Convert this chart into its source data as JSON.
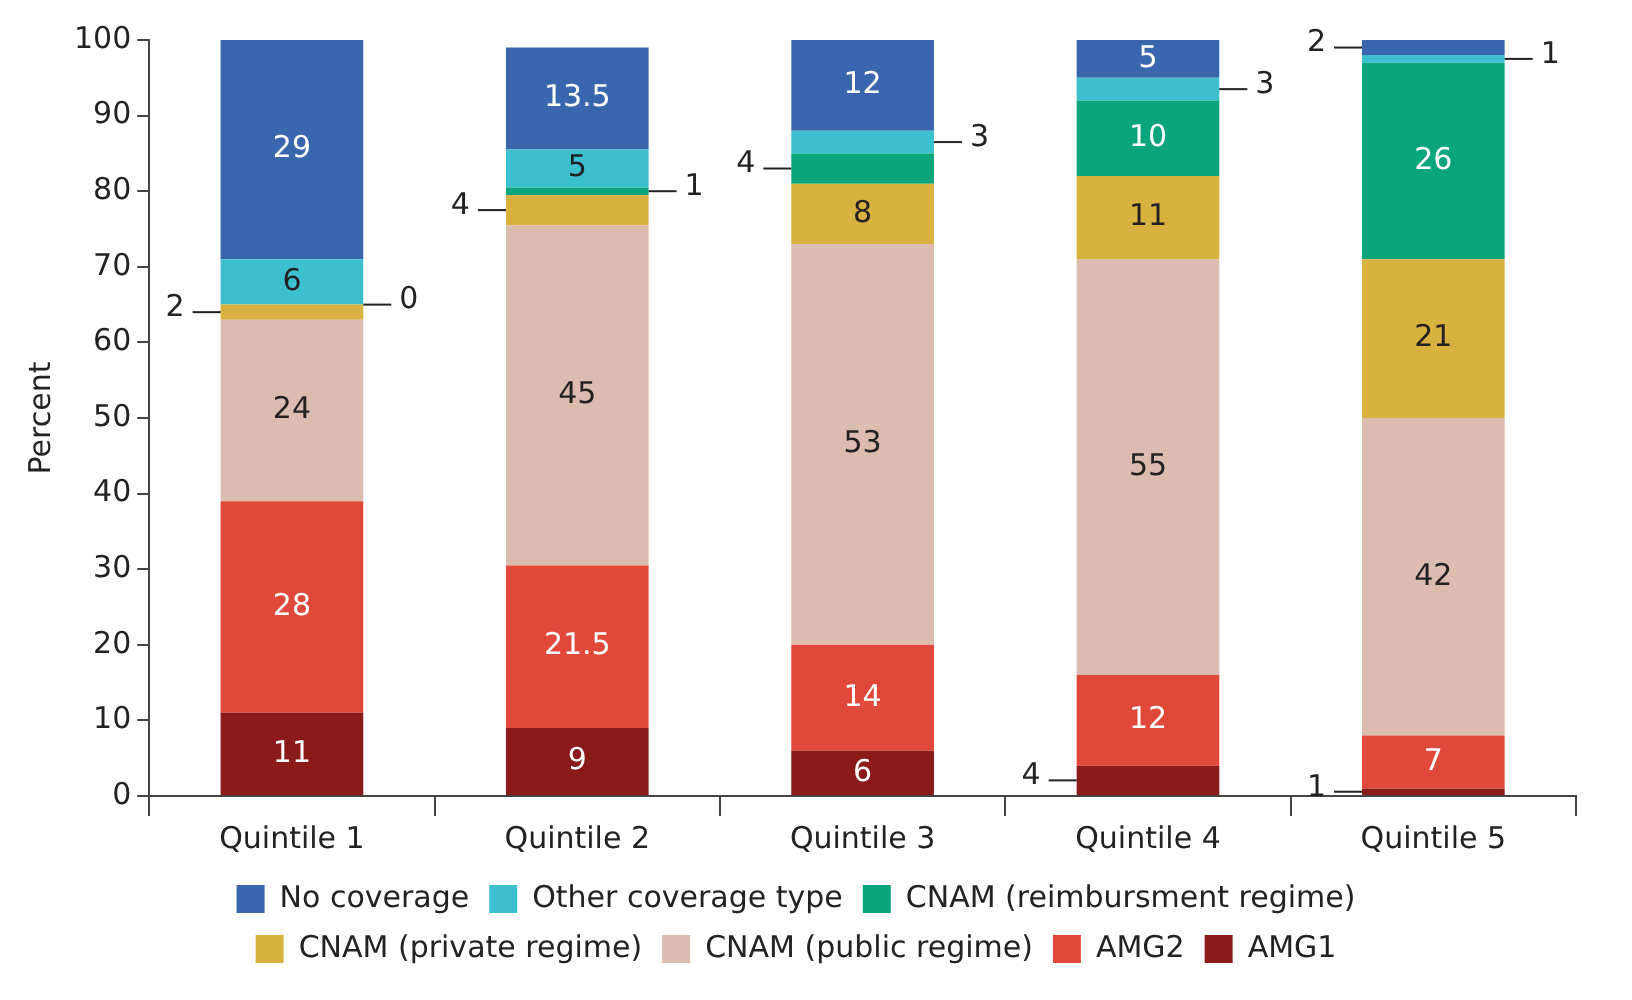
{
  "chart_data": {
    "type": "bar",
    "stacked": true,
    "ylabel": "Percent",
    "categories": [
      "Quintile 1",
      "Quintile 2",
      "Quintile 3",
      "Quintile 4",
      "Quintile 5"
    ],
    "series": [
      {
        "name": "AMG1",
        "color": "#8b1a1a",
        "values": [
          11,
          9,
          6,
          4,
          1
        ],
        "value_labels": [
          "11",
          "9",
          "6",
          "4",
          "1"
        ]
      },
      {
        "name": "AMG2",
        "color": "#e0483a",
        "values": [
          28,
          21.5,
          14,
          12,
          7
        ],
        "value_labels": [
          "28",
          "21.5",
          "14",
          "12",
          "7"
        ]
      },
      {
        "name": "CNAM (public regime)",
        "color": "#dcbcae",
        "values": [
          24,
          45,
          53,
          55,
          42
        ],
        "value_labels": [
          "24",
          "45",
          "53",
          "55",
          "42"
        ]
      },
      {
        "name": "CNAM (private regime)",
        "color": "#d9b13f",
        "values": [
          2,
          4,
          8,
          11,
          21
        ],
        "value_labels": [
          "2",
          "4",
          "8",
          "11",
          "21"
        ]
      },
      {
        "name": "CNAM (reimbursment regime)",
        "color": "#0aa57a",
        "values": [
          0,
          1,
          4,
          10,
          26
        ],
        "value_labels": [
          null,
          "1",
          "4",
          "10",
          "26"
        ]
      },
      {
        "name": "Other coverage type",
        "color": "#3cc0d0",
        "values": [
          6,
          5,
          3,
          3,
          1
        ],
        "value_labels": [
          "6",
          "5",
          "3",
          "3",
          "1"
        ]
      },
      {
        "name": "No coverage",
        "color": "#3a66ae",
        "values": [
          29,
          13.5,
          12,
          5,
          2
        ],
        "value_labels": [
          "29",
          "13.5",
          "12",
          "5",
          "2"
        ]
      }
    ],
    "annotations": [
      "0"
    ],
    "ylim": [
      0,
      100
    ],
    "yticks": [
      0,
      10,
      20,
      30,
      40,
      50,
      60,
      70,
      80,
      90,
      100
    ],
    "grid": false,
    "legend": "bottom"
  }
}
